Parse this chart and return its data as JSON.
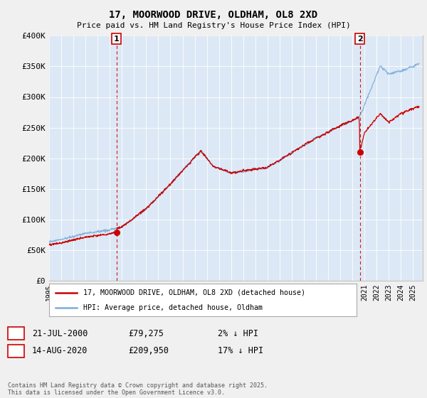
{
  "title": "17, MOORWOOD DRIVE, OLDHAM, OL8 2XD",
  "subtitle": "Price paid vs. HM Land Registry's House Price Index (HPI)",
  "ylim": [
    0,
    400000
  ],
  "yticks": [
    0,
    50000,
    100000,
    150000,
    200000,
    250000,
    300000,
    350000,
    400000
  ],
  "ytick_labels": [
    "£0",
    "£50K",
    "£100K",
    "£150K",
    "£200K",
    "£250K",
    "£300K",
    "£350K",
    "£400K"
  ],
  "hpi_color": "#7aaddb",
  "price_color": "#cc0000",
  "vline_color": "#cc0000",
  "marker1_date": 2000.55,
  "marker1_price": 79275,
  "marker2_date": 2020.62,
  "marker2_price": 209950,
  "legend_line1": "17, MOORWOOD DRIVE, OLDHAM, OL8 2XD (detached house)",
  "legend_line2": "HPI: Average price, detached house, Oldham",
  "bg_color": "#f0f0f0",
  "plot_bg_color": "#dce8f5",
  "grid_color": "#ffffff"
}
